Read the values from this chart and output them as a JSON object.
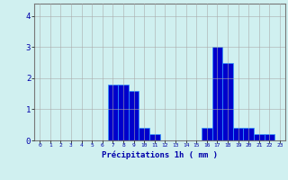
{
  "hours": [
    0,
    1,
    2,
    3,
    4,
    5,
    6,
    7,
    8,
    9,
    10,
    11,
    12,
    13,
    14,
    15,
    16,
    17,
    18,
    19,
    20,
    21,
    22,
    23
  ],
  "values": [
    0,
    0,
    0,
    0,
    0,
    0,
    0,
    1.8,
    1.8,
    1.6,
    0.4,
    0.2,
    0,
    0,
    0,
    0,
    0.4,
    3.0,
    2.5,
    0.4,
    0.4,
    0.2,
    0.2,
    0
  ],
  "bar_color": "#0000cc",
  "bar_edge_color": "#3399ff",
  "background_color": "#d0f0f0",
  "grid_color": "#aaaaaa",
  "text_color": "#0000aa",
  "xlabel": "Précipitations 1h ( mm )",
  "ylim": [
    0,
    4.4
  ],
  "yticks": [
    0,
    1,
    2,
    3,
    4
  ],
  "xlim": [
    -0.5,
    23.5
  ]
}
